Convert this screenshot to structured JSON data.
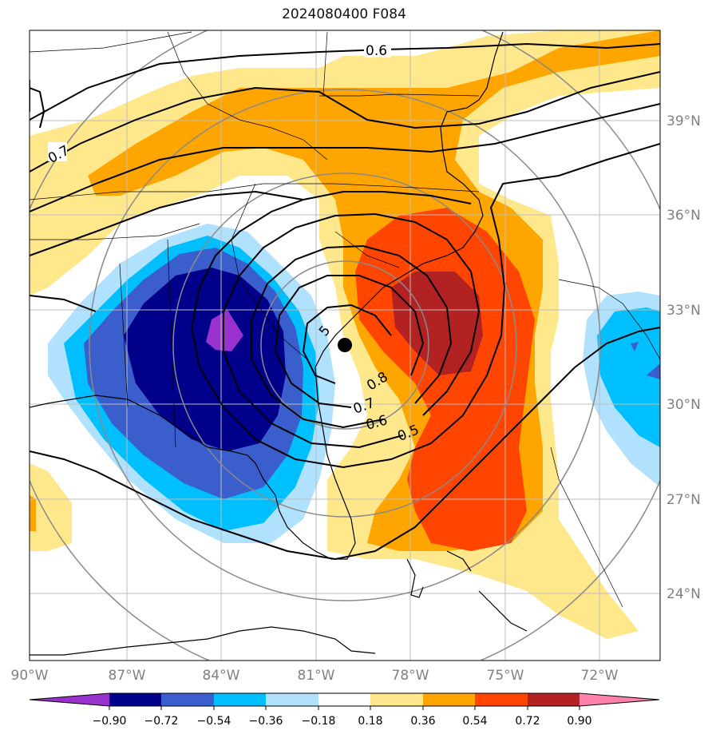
{
  "title": "2024080400 F084",
  "map": {
    "lon_labels": [
      "90°W",
      "87°W",
      "84°W",
      "81°W",
      "78°W",
      "75°W",
      "72°W"
    ],
    "lat_labels": [
      "39°N",
      "36°N",
      "33°N",
      "30°N",
      "27°N",
      "24°N"
    ],
    "contour_labels": [
      "0.6",
      "0.7",
      "0.8",
      "0.7",
      "0.6",
      "0.5",
      "5"
    ],
    "center_marker": "storm-center-dot"
  },
  "colorbar": {
    "ticks": [
      "−0.90",
      "−0.72",
      "−0.54",
      "−0.36",
      "−0.18",
      "0.18",
      "0.36",
      "0.54",
      "0.72",
      "0.90"
    ],
    "colors": [
      "#9932cc",
      "#00008b",
      "#3a5fcd",
      "#00bfff",
      "#b0e2ff",
      "#ffffff",
      "#ffe88c",
      "#ffa500",
      "#ff4500",
      "#b22222",
      "#ff82ab"
    ]
  },
  "colors": {
    "neg_strong": "#00008b",
    "neg_med": "#3a5fcd",
    "neg_light": "#00bfff",
    "neg_pale": "#b0e2ff",
    "pos_pale": "#ffe88c",
    "pos_med": "#ffa500",
    "pos_strong": "#ff4500",
    "pos_dark": "#b22222",
    "purple": "#9932cc"
  }
}
